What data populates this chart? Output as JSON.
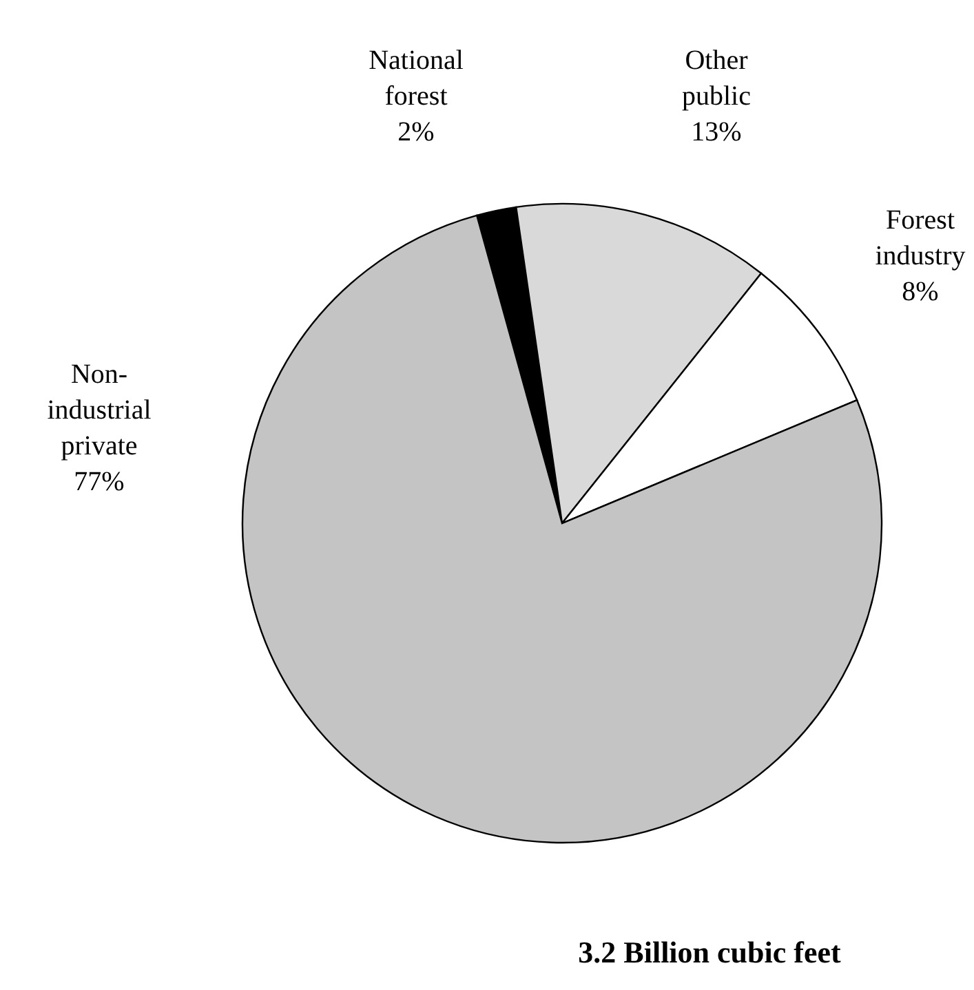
{
  "chart_data": {
    "type": "pie",
    "title": "3.2 Billion cubic feet",
    "categories": [
      "National forest",
      "Other public",
      "Forest industry",
      "Non-industrial private"
    ],
    "values": [
      2,
      13,
      8,
      77
    ],
    "colors": [
      "#000000",
      "#d9d9d9",
      "#ffffff",
      "#c4c4c4"
    ],
    "value_labels": [
      "2%",
      "13%",
      "8%",
      "77%"
    ]
  }
}
